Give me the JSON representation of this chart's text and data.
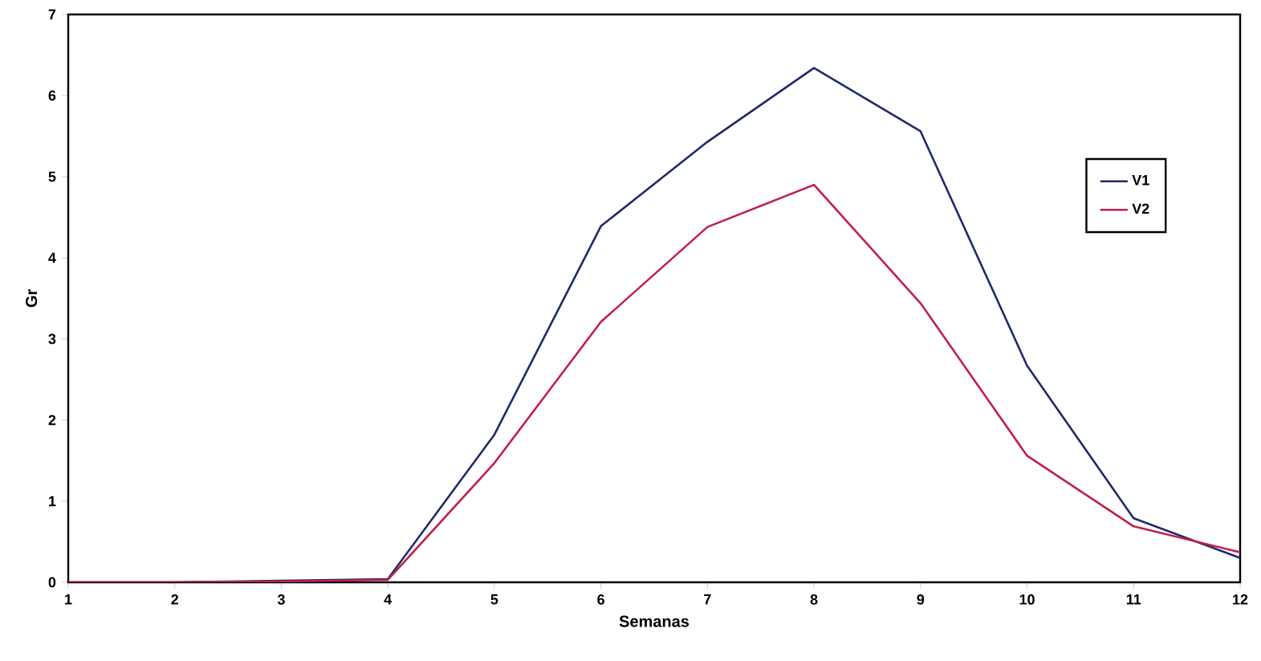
{
  "chart_data": {
    "type": "line",
    "xlabel": "Semanas",
    "ylabel": "Gr",
    "x": [
      1,
      2,
      3,
      4,
      5,
      6,
      7,
      8,
      9,
      10,
      11,
      12
    ],
    "series": [
      {
        "name": "V1",
        "color": "#1f2a6b",
        "values": [
          0,
          0,
          0.02,
          0.04,
          1.82,
          4.39,
          5.43,
          6.34,
          5.56,
          2.67,
          0.79,
          0.3
        ]
      },
      {
        "name": "V2",
        "color": "#c0204a",
        "values": [
          0,
          0,
          0.01,
          0.03,
          1.47,
          3.21,
          4.38,
          4.9,
          3.44,
          1.56,
          0.69,
          0.37
        ]
      }
    ],
    "xlim": [
      1,
      12
    ],
    "ylim": [
      0,
      7
    ],
    "xticks": [
      1,
      2,
      3,
      4,
      5,
      6,
      7,
      8,
      9,
      10,
      11,
      12
    ],
    "yticks": [
      0,
      1,
      2,
      3,
      4,
      5,
      6,
      7
    ],
    "grid": false,
    "legend": "right",
    "marker": "none",
    "line_style": "solid"
  }
}
